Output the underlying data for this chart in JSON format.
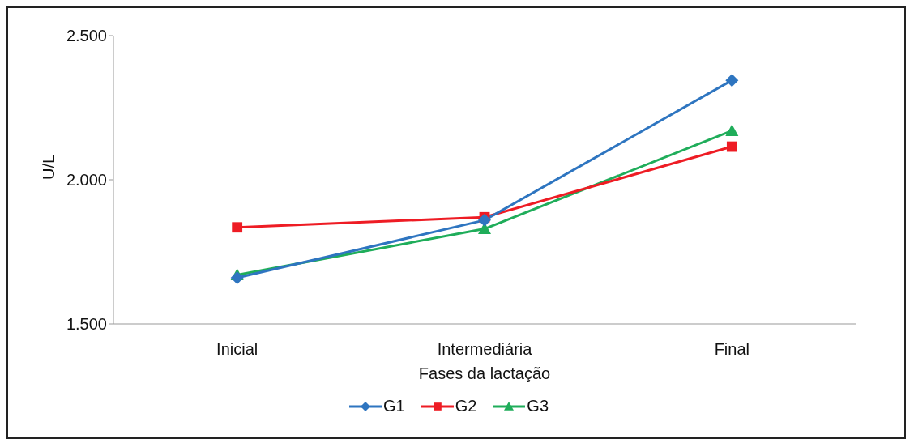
{
  "chart_data": {
    "type": "line",
    "xlabel": "Fases da lactação",
    "ylabel": "U/L",
    "categories": [
      "Inicial",
      "Intermediária",
      "Final"
    ],
    "series": [
      {
        "name": "G1",
        "color": "#2e75c0",
        "marker": "diamond",
        "values": [
          1660,
          1860,
          2345
        ]
      },
      {
        "name": "G2",
        "color": "#ee1c24",
        "marker": "square",
        "values": [
          1835,
          1870,
          2115
        ]
      },
      {
        "name": "G3",
        "color": "#1fad5a",
        "marker": "triangle",
        "values": [
          1670,
          1830,
          2170
        ]
      }
    ],
    "ylim": [
      1500,
      2500
    ],
    "yticks": [
      {
        "value": 1500,
        "label": "1.500"
      },
      {
        "value": 2000,
        "label": "2.000"
      },
      {
        "value": 2500,
        "label": "2.500"
      }
    ],
    "grid": false,
    "legend": "bottom",
    "line_style": "solid"
  }
}
